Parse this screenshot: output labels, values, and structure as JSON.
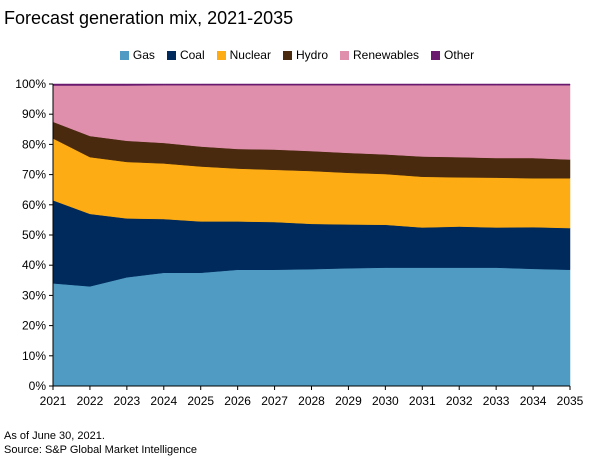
{
  "title": "Forecast generation mix, 2021-2035",
  "footnotes": {
    "note": "As of June 30, 2021.",
    "source": "Source: S&P Global Market Intelligence"
  },
  "chart_data": {
    "type": "area",
    "stacked": true,
    "x": [
      "2021",
      "2022",
      "2023",
      "2024",
      "2025",
      "2026",
      "2027",
      "2028",
      "2029",
      "2030",
      "2031",
      "2032",
      "2033",
      "2034",
      "2035"
    ],
    "ylim": [
      0,
      100
    ],
    "ytick_labels": [
      "0%",
      "10%",
      "20%",
      "30%",
      "40%",
      "50%",
      "60%",
      "70%",
      "80%",
      "90%",
      "100%"
    ],
    "legend_position": "top",
    "grid": false,
    "series": [
      {
        "name": "Gas",
        "color": "#4f9bc4",
        "values": [
          34,
          33,
          36,
          37.5,
          37.5,
          38.5,
          38.5,
          38.7,
          39,
          39.2,
          39.2,
          39.2,
          39.2,
          38.8,
          38.5
        ]
      },
      {
        "name": "Coal",
        "color": "#002a5c",
        "values": [
          27.5,
          24,
          19.5,
          17.8,
          17,
          16,
          15.8,
          15,
          14.5,
          14.2,
          13.3,
          13.6,
          13.3,
          13.8,
          13.8
        ]
      },
      {
        "name": "Nuclear",
        "color": "#fdac13",
        "values": [
          20.5,
          18.8,
          18.7,
          18.4,
          18.2,
          17.5,
          17.3,
          17.5,
          17.1,
          16.8,
          16.8,
          16.3,
          16.5,
          16.2,
          16.5
        ]
      },
      {
        "name": "Hydro",
        "color": "#4a2a0e",
        "values": [
          5.5,
          7,
          7,
          6.8,
          6.6,
          6.5,
          6.7,
          6.6,
          6.6,
          6.5,
          6.7,
          6.7,
          6.5,
          6.7,
          6.2
        ]
      },
      {
        "name": "Renewables",
        "color": "#df8fab",
        "values": [
          12,
          16.7,
          18.3,
          19.1,
          20.3,
          21.1,
          21.3,
          21.8,
          22.4,
          22.9,
          23.6,
          23.8,
          24.1,
          24.1,
          24.6
        ]
      },
      {
        "name": "Other",
        "color": "#6a1b6e",
        "values": [
          0.5,
          0.5,
          0.5,
          0.4,
          0.4,
          0.4,
          0.4,
          0.4,
          0.4,
          0.4,
          0.4,
          0.4,
          0.4,
          0.4,
          0.4
        ]
      }
    ]
  }
}
